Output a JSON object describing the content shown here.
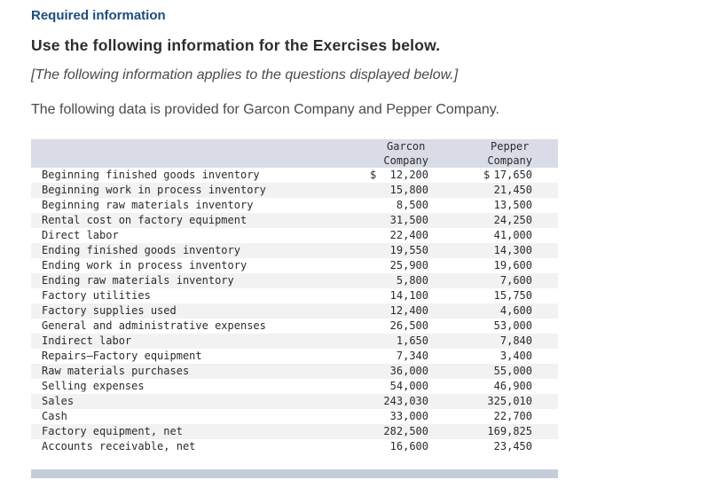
{
  "page": {
    "required_label": "Required information",
    "heading": "Use the following information for the Exercises below.",
    "note": "[The following information applies to the questions displayed below.]",
    "intro": "The following data is provided for Garcon Company and Pepper Company."
  },
  "colors": {
    "required_label": "#1b4e7c",
    "table_header_bg": "#d9dce6",
    "row_stripe_bg": "#f2f2f3",
    "scrollbar_bg": "#c6ccd9"
  },
  "table": {
    "currency_symbol": "$",
    "col1_header": [
      "Garcon",
      "Company"
    ],
    "col2_header": [
      "Pepper",
      "Company"
    ],
    "rows": [
      {
        "label": "Beginning finished goods inventory",
        "garcon": "12,200",
        "pepper": "17,650",
        "dollar": true
      },
      {
        "label": "Beginning work in process inventory",
        "garcon": "15,800",
        "pepper": "21,450",
        "dollar": false
      },
      {
        "label": "Beginning raw materials inventory",
        "garcon": "8,500",
        "pepper": "13,500",
        "dollar": false
      },
      {
        "label": "Rental cost on factory equipment",
        "garcon": "31,500",
        "pepper": "24,250",
        "dollar": false
      },
      {
        "label": "Direct labor",
        "garcon": "22,400",
        "pepper": "41,000",
        "dollar": false
      },
      {
        "label": "Ending finished goods inventory",
        "garcon": "19,550",
        "pepper": "14,300",
        "dollar": false
      },
      {
        "label": "Ending work in process inventory",
        "garcon": "25,900",
        "pepper": "19,600",
        "dollar": false
      },
      {
        "label": "Ending raw materials inventory",
        "garcon": "5,800",
        "pepper": "7,600",
        "dollar": false
      },
      {
        "label": "Factory utilities",
        "garcon": "14,100",
        "pepper": "15,750",
        "dollar": false
      },
      {
        "label": "Factory supplies used",
        "garcon": "12,400",
        "pepper": "4,600",
        "dollar": false
      },
      {
        "label": "General and administrative expenses",
        "garcon": "26,500",
        "pepper": "53,000",
        "dollar": false
      },
      {
        "label": "Indirect labor",
        "garcon": "1,650",
        "pepper": "7,840",
        "dollar": false
      },
      {
        "label": "Repairs—Factory equipment",
        "garcon": "7,340",
        "pepper": "3,400",
        "dollar": false
      },
      {
        "label": "Raw materials purchases",
        "garcon": "36,000",
        "pepper": "55,000",
        "dollar": false
      },
      {
        "label": "Selling expenses",
        "garcon": "54,000",
        "pepper": "46,900",
        "dollar": false
      },
      {
        "label": "Sales",
        "garcon": "243,030",
        "pepper": "325,010",
        "dollar": false
      },
      {
        "label": "Cash",
        "garcon": "33,000",
        "pepper": "22,700",
        "dollar": false
      },
      {
        "label": "Factory equipment, net",
        "garcon": "282,500",
        "pepper": "169,825",
        "dollar": false
      },
      {
        "label": "Accounts receivable, net",
        "garcon": "16,600",
        "pepper": "23,450",
        "dollar": false
      }
    ]
  }
}
